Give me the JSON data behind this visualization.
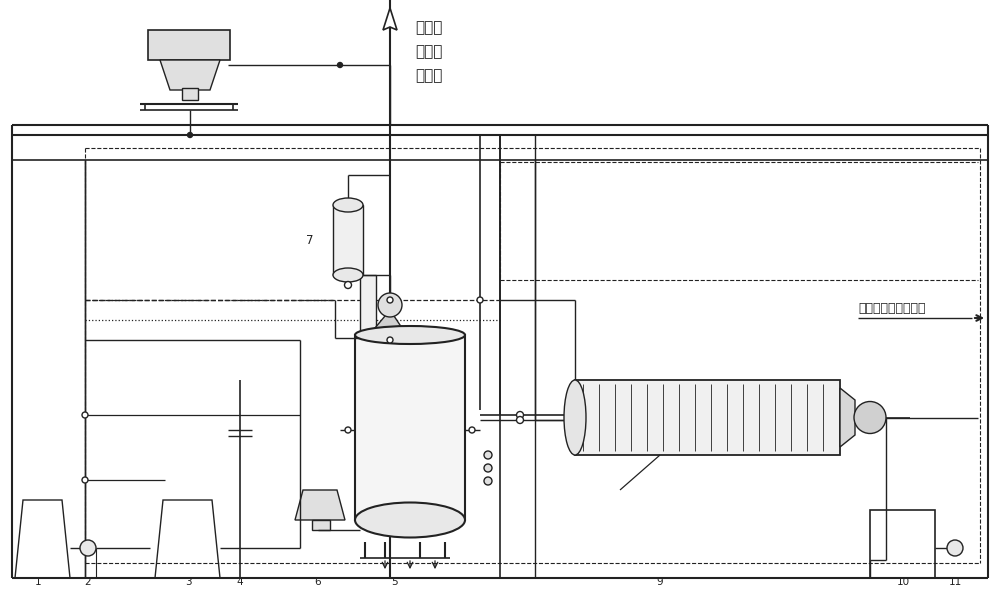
{
  "bg_color": "#ffffff",
  "lc": "#222222",
  "label_top1": "封闭式",
  "label_top2": "氨水制",
  "label_top3": "备系统",
  "label_right": "多功能硫酸镁结晶器",
  "figsize": [
    10.0,
    5.94
  ],
  "dpi": 100
}
